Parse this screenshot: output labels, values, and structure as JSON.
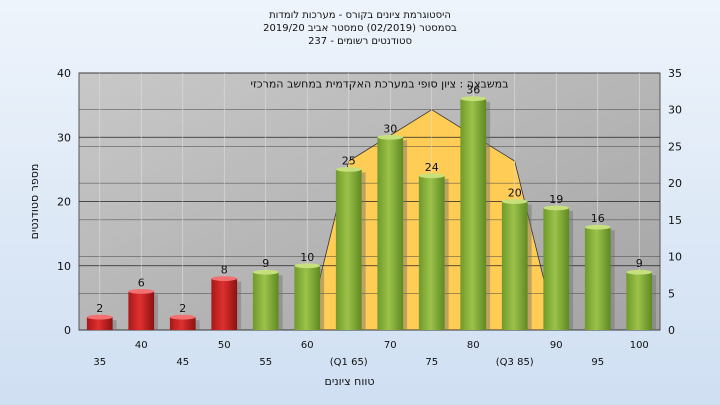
{
  "title_lines": [
    "היסטוגרמת ציונים בקורס - מערכות לומדות",
    "בסמסטר  (02/2019)  סמסטר אביב 2019/20",
    "סטודנטים רשומים - 237"
  ],
  "colors": {
    "fail_bar": "#e03030",
    "pass_bar": "#9cc24a",
    "bell_fill": "#ffcc55",
    "plot_bg": "#b0b0b0"
  },
  "chart_data": {
    "type": "bar",
    "annotation": "במשבצה : ציון סופי במערכת האקדמית במחשב המרכזי",
    "categories": [
      "35",
      "40",
      "45",
      "50",
      "55",
      "60",
      "65",
      "70",
      "75",
      "80",
      "85",
      "90",
      "95",
      "100"
    ],
    "x_tick_labels": [
      "35",
      "40",
      "45",
      "50",
      "55",
      "60",
      "(Q1 65)",
      "70",
      "75",
      "80",
      "(Q3 85)",
      "90",
      "95",
      "100"
    ],
    "values": [
      2,
      6,
      2,
      8,
      9,
      10,
      25,
      30,
      24,
      36,
      20,
      19,
      16,
      9
    ],
    "value_labels": [
      "2",
      "6",
      "2",
      "8",
      "9",
      "10",
      "25",
      "30",
      "24",
      "36",
      "20",
      "19",
      "16",
      "9"
    ],
    "failing_categories": [
      "35",
      "40",
      "45",
      "50"
    ],
    "ylabel": "מספר סטודנטים",
    "xlabel": "טווח ציונים",
    "ylim": [
      0,
      40
    ],
    "y_ticks": [
      0,
      10,
      20,
      30,
      40
    ],
    "y2lim": [
      0,
      35
    ],
    "y2_ticks": [
      0,
      5,
      10,
      15,
      20,
      25,
      30,
      35
    ],
    "bell_curve": {
      "x": [
        "60",
        "65",
        "75",
        "85",
        "90"
      ],
      "y2": [
        0,
        23,
        30,
        23,
        0
      ]
    },
    "grid": true,
    "legend": "none"
  }
}
